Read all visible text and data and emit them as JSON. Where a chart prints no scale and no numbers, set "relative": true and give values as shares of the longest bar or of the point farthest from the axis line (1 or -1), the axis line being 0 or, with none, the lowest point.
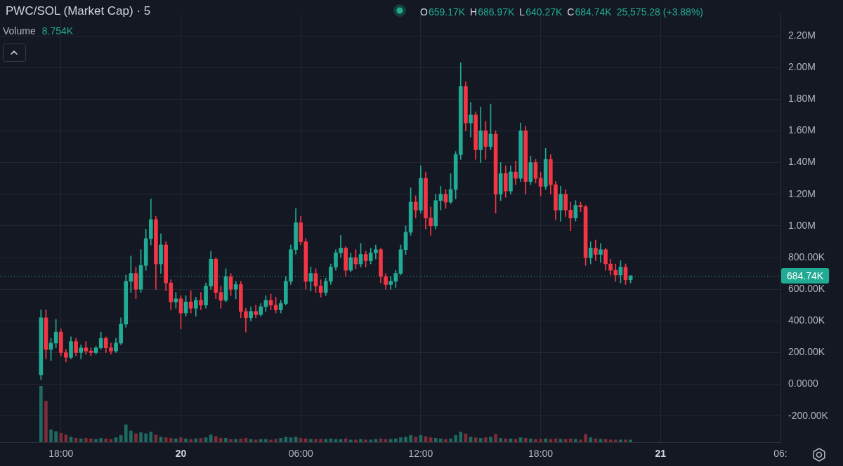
{
  "chart_data": [
    {
      "type": "candlestick",
      "title": "PWC/SOL (Market Cap) · 5",
      "annotations": [
        "O",
        "659.17K",
        "H",
        "686.97K",
        "L",
        "640.27K",
        "C",
        "684.74K",
        "25,575.28 (+3.88%)",
        "Volume",
        "8.754K"
      ],
      "x": [
        "--03-19T17:00",
        "--03-19T17:15",
        "--03-19T17:30",
        "--03-19T17:45",
        "--03-19T18:00",
        "--03-19T18:15",
        "--03-19T18:30",
        "--03-19T18:45",
        "--03-19T19:00",
        "--03-19T19:15",
        "--03-19T19:30",
        "--03-19T19:45",
        "--03-19T20:00",
        "--03-19T20:15",
        "--03-19T20:30",
        "--03-19T20:45",
        "--03-19T21:00",
        "--03-19T21:15",
        "--03-19T21:30",
        "--03-19T21:45",
        "--03-19T22:00",
        "--03-19T22:15",
        "--03-19T22:30",
        "--03-19T22:45",
        "--03-19T23:00",
        "--03-19T23:15",
        "--03-19T23:30",
        "--03-19T23:45",
        "--03-20T00:00",
        "--03-20T00:15",
        "--03-20T00:30",
        "--03-20T00:45",
        "--03-20T01:00",
        "--03-20T01:15",
        "--03-20T01:30",
        "--03-20T01:45",
        "--03-20T02:00",
        "--03-20T02:15",
        "--03-20T02:30",
        "--03-20T02:45",
        "--03-20T03:00",
        "--03-20T03:15",
        "--03-20T03:30",
        "--03-20T03:45",
        "--03-20T04:00",
        "--03-20T04:15",
        "--03-20T04:30",
        "--03-20T04:45",
        "--03-20T05:00",
        "--03-20T05:15",
        "--03-20T05:30",
        "--03-20T05:45",
        "--03-20T06:00",
        "--03-20T06:15",
        "--03-20T06:30",
        "--03-20T06:45",
        "--03-20T07:00",
        "--03-20T07:15",
        "--03-20T07:30",
        "--03-20T07:45",
        "--03-20T08:00",
        "--03-20T08:15",
        "--03-20T08:30",
        "--03-20T08:45",
        "--03-20T09:00",
        "--03-20T09:15",
        "--03-20T09:30",
        "--03-20T09:45",
        "--03-20T10:00",
        "--03-20T10:15",
        "--03-20T10:30",
        "--03-20T10:45",
        "--03-20T11:00",
        "--03-20T11:15",
        "--03-20T11:30",
        "--03-20T11:45",
        "--03-20T12:00",
        "--03-20T12:15",
        "--03-20T12:30",
        "--03-20T12:45",
        "--03-20T13:00",
        "--03-20T13:15",
        "--03-20T13:30",
        "--03-20T13:45",
        "--03-20T14:00",
        "--03-20T14:15",
        "--03-20T14:30",
        "--03-20T14:45",
        "--03-20T15:00",
        "--03-20T15:15",
        "--03-20T15:30",
        "--03-20T15:45",
        "--03-20T16:00",
        "--03-20T16:15",
        "--03-20T16:30",
        "--03-20T16:45",
        "--03-20T17:00",
        "--03-20T17:15",
        "--03-20T17:30",
        "--03-20T17:45",
        "--03-20T18:00",
        "--03-20T18:15",
        "--03-20T18:30",
        "--03-20T18:45",
        "--03-20T19:00",
        "--03-20T19:15",
        "--03-20T19:30",
        "--03-20T19:45",
        "--03-20T20:00",
        "--03-20T20:15",
        "--03-20T20:30",
        "--03-20T20:45",
        "--03-20T21:00",
        "--03-20T21:15",
        "--03-20T21:30",
        "--03-20T21:45",
        "--03-20T22:00",
        "--03-20T22:15",
        "--03-20T22:30"
      ],
      "ohlc": [
        [
          60000,
          470000,
          30000,
          420000
        ],
        [
          420000,
          470000,
          160000,
          220000
        ],
        [
          220000,
          290000,
          150000,
          260000
        ],
        [
          260000,
          410000,
          230000,
          330000
        ],
        [
          330000,
          350000,
          180000,
          200000
        ],
        [
          200000,
          220000,
          140000,
          170000
        ],
        [
          170000,
          300000,
          160000,
          270000
        ],
        [
          270000,
          290000,
          180000,
          200000
        ],
        [
          200000,
          250000,
          160000,
          230000
        ],
        [
          230000,
          270000,
          190000,
          210000
        ],
        [
          210000,
          230000,
          180000,
          200000
        ],
        [
          200000,
          240000,
          190000,
          230000
        ],
        [
          230000,
          330000,
          220000,
          290000
        ],
        [
          290000,
          300000,
          200000,
          230000
        ],
        [
          230000,
          260000,
          190000,
          210000
        ],
        [
          210000,
          290000,
          200000,
          260000
        ],
        [
          260000,
          420000,
          250000,
          380000
        ],
        [
          380000,
          690000,
          360000,
          650000
        ],
        [
          650000,
          810000,
          580000,
          700000
        ],
        [
          700000,
          740000,
          540000,
          600000
        ],
        [
          600000,
          850000,
          580000,
          750000
        ],
        [
          750000,
          980000,
          720000,
          920000
        ],
        [
          920000,
          1170000,
          880000,
          1040000
        ],
        [
          1040000,
          1060000,
          600000,
          760000
        ],
        [
          760000,
          950000,
          700000,
          880000
        ],
        [
          880000,
          900000,
          590000,
          640000
        ],
        [
          640000,
          660000,
          470000,
          520000
        ],
        [
          520000,
          580000,
          480000,
          540000
        ],
        [
          540000,
          560000,
          350000,
          450000
        ],
        [
          450000,
          560000,
          430000,
          520000
        ],
        [
          520000,
          590000,
          450000,
          480000
        ],
        [
          480000,
          550000,
          430000,
          530000
        ],
        [
          530000,
          580000,
          470000,
          500000
        ],
        [
          500000,
          640000,
          480000,
          620000
        ],
        [
          620000,
          840000,
          600000,
          790000
        ],
        [
          790000,
          800000,
          540000,
          580000
        ],
        [
          580000,
          620000,
          480000,
          530000
        ],
        [
          530000,
          730000,
          520000,
          680000
        ],
        [
          680000,
          700000,
          560000,
          600000
        ],
        [
          600000,
          650000,
          540000,
          630000
        ],
        [
          630000,
          650000,
          420000,
          460000
        ],
        [
          460000,
          480000,
          330000,
          420000
        ],
        [
          420000,
          490000,
          400000,
          460000
        ],
        [
          460000,
          500000,
          420000,
          440000
        ],
        [
          440000,
          510000,
          430000,
          490000
        ],
        [
          490000,
          560000,
          460000,
          530000
        ],
        [
          530000,
          570000,
          470000,
          500000
        ],
        [
          500000,
          550000,
          450000,
          470000
        ],
        [
          470000,
          530000,
          450000,
          510000
        ],
        [
          510000,
          680000,
          500000,
          650000
        ],
        [
          650000,
          880000,
          630000,
          850000
        ],
        [
          850000,
          1110000,
          820000,
          1020000
        ],
        [
          1020000,
          1060000,
          880000,
          900000
        ],
        [
          900000,
          920000,
          600000,
          650000
        ],
        [
          650000,
          740000,
          590000,
          700000
        ],
        [
          700000,
          730000,
          580000,
          620000
        ],
        [
          620000,
          660000,
          550000,
          580000
        ],
        [
          580000,
          670000,
          560000,
          650000
        ],
        [
          650000,
          760000,
          630000,
          740000
        ],
        [
          740000,
          850000,
          720000,
          830000
        ],
        [
          830000,
          940000,
          800000,
          860000
        ],
        [
          860000,
          870000,
          680000,
          720000
        ],
        [
          720000,
          830000,
          710000,
          800000
        ],
        [
          800000,
          850000,
          730000,
          760000
        ],
        [
          760000,
          890000,
          740000,
          820000
        ],
        [
          820000,
          840000,
          740000,
          780000
        ],
        [
          780000,
          860000,
          760000,
          830000
        ],
        [
          830000,
          880000,
          790000,
          850000
        ],
        [
          850000,
          860000,
          640000,
          680000
        ],
        [
          680000,
          700000,
          600000,
          630000
        ],
        [
          630000,
          680000,
          600000,
          650000
        ],
        [
          650000,
          720000,
          610000,
          700000
        ],
        [
          700000,
          880000,
          690000,
          850000
        ],
        [
          850000,
          1000000,
          820000,
          960000
        ],
        [
          960000,
          1240000,
          940000,
          1150000
        ],
        [
          1150000,
          1190000,
          1050000,
          1100000
        ],
        [
          1100000,
          1380000,
          1080000,
          1300000
        ],
        [
          1300000,
          1340000,
          980000,
          1050000
        ],
        [
          1050000,
          1120000,
          940000,
          1000000
        ],
        [
          1000000,
          1200000,
          980000,
          1160000
        ],
        [
          1160000,
          1250000,
          1100000,
          1200000
        ],
        [
          1200000,
          1230000,
          1110000,
          1150000
        ],
        [
          1150000,
          1330000,
          1140000,
          1230000
        ],
        [
          1230000,
          1470000,
          1170000,
          1450000
        ],
        [
          1450000,
          2030000,
          1420000,
          1880000
        ],
        [
          1880000,
          1910000,
          1600000,
          1650000
        ],
        [
          1650000,
          1780000,
          1560000,
          1700000
        ],
        [
          1700000,
          1720000,
          1420000,
          1480000
        ],
        [
          1480000,
          1750000,
          1400000,
          1600000
        ],
        [
          1600000,
          1660000,
          1420000,
          1500000
        ],
        [
          1500000,
          1770000,
          1480000,
          1580000
        ],
        [
          1580000,
          1600000,
          1080000,
          1200000
        ],
        [
          1200000,
          1400000,
          1160000,
          1330000
        ],
        [
          1330000,
          1380000,
          1180000,
          1220000
        ],
        [
          1220000,
          1380000,
          1200000,
          1340000
        ],
        [
          1340000,
          1410000,
          1260000,
          1300000
        ],
        [
          1300000,
          1650000,
          1280000,
          1600000
        ],
        [
          1600000,
          1630000,
          1200000,
          1280000
        ],
        [
          1280000,
          1440000,
          1260000,
          1400000
        ],
        [
          1400000,
          1420000,
          1270000,
          1300000
        ],
        [
          1300000,
          1340000,
          1190000,
          1250000
        ],
        [
          1250000,
          1490000,
          1230000,
          1420000
        ],
        [
          1420000,
          1450000,
          1200000,
          1260000
        ],
        [
          1260000,
          1280000,
          1040000,
          1100000
        ],
        [
          1100000,
          1250000,
          1030000,
          1200000
        ],
        [
          1200000,
          1230000,
          1060000,
          1100000
        ],
        [
          1100000,
          1150000,
          970000,
          1050000
        ],
        [
          1050000,
          1160000,
          1030000,
          1130000
        ],
        [
          1130000,
          1150000,
          1090000,
          1120000
        ],
        [
          1120000,
          1130000,
          750000,
          800000
        ],
        [
          800000,
          900000,
          760000,
          860000
        ],
        [
          860000,
          910000,
          780000,
          820000
        ],
        [
          820000,
          890000,
          770000,
          850000
        ],
        [
          850000,
          860000,
          720000,
          760000
        ],
        [
          760000,
          790000,
          690000,
          720000
        ],
        [
          720000,
          760000,
          650000,
          690000
        ],
        [
          690000,
          780000,
          640000,
          740000
        ],
        [
          740000,
          760000,
          630000,
          660000
        ],
        [
          659170,
          686970,
          640270,
          684740
        ]
      ],
      "colors": [
        "#22ab94",
        "#f23645",
        "#22ab94",
        "#22ab94",
        "#f23645",
        "#f23645",
        "#22ab94",
        "#f23645",
        "#22ab94",
        "#f23645",
        "#f23645",
        "#22ab94",
        "#22ab94",
        "#f23645",
        "#f23645",
        "#22ab94",
        "#22ab94",
        "#22ab94",
        "#22ab94",
        "#f23645",
        "#22ab94",
        "#22ab94",
        "#22ab94",
        "#f23645",
        "#22ab94",
        "#f23645",
        "#f23645",
        "#22ab94",
        "#f23645",
        "#22ab94",
        "#f23645",
        "#22ab94",
        "#f23645",
        "#22ab94",
        "#22ab94",
        "#f23645",
        "#f23645",
        "#22ab94",
        "#f23645",
        "#22ab94",
        "#f23645",
        "#f23645",
        "#22ab94",
        "#f23645",
        "#22ab94",
        "#22ab94",
        "#f23645",
        "#f23645",
        "#22ab94",
        "#22ab94",
        "#22ab94",
        "#22ab94",
        "#f23645",
        "#f23645",
        "#22ab94",
        "#f23645",
        "#f23645",
        "#22ab94",
        "#22ab94",
        "#22ab94",
        "#22ab94",
        "#f23645",
        "#22ab94",
        "#f23645",
        "#22ab94",
        "#f23645",
        "#22ab94",
        "#22ab94",
        "#f23645",
        "#f23645",
        "#22ab94",
        "#22ab94",
        "#22ab94",
        "#22ab94",
        "#22ab94",
        "#f23645",
        "#22ab94",
        "#f23645",
        "#f23645",
        "#22ab94",
        "#22ab94",
        "#f23645",
        "#22ab94",
        "#22ab94",
        "#22ab94",
        "#f23645",
        "#22ab94",
        "#f23645",
        "#22ab94",
        "#f23645",
        "#22ab94",
        "#f23645",
        "#22ab94",
        "#f23645",
        "#22ab94",
        "#f23645",
        "#22ab94",
        "#f23645",
        "#22ab94",
        "#f23645",
        "#f23645",
        "#22ab94",
        "#f23645",
        "#f23645",
        "#22ab94",
        "#f23645",
        "#f23645",
        "#22ab94",
        "#f23645",
        "#f23645",
        "#22ab94",
        "#f23645",
        "#22ab94",
        "#f23645",
        "#f23645",
        "#f23645",
        "#22ab94",
        "#f23645",
        "#22ab94"
      ],
      "xlim": [
        "--03-19T14:57",
        "--03-21T06:00"
      ],
      "xticks": [
        {
          "value": "--03-19T18:00",
          "label": "18:00"
        },
        {
          "value": "--03-20T00:00",
          "label": "20"
        },
        {
          "value": "--03-20T06:00",
          "label": "06:00"
        },
        {
          "value": "--03-20T12:00",
          "label": "12:00"
        },
        {
          "value": "--03-20T18:00",
          "label": "18:00"
        },
        {
          "value": "--03-21T00:00",
          "label": "21"
        },
        {
          "value": "--03-21T06:00",
          "label": "06:"
        }
      ],
      "ylim": [
        -365000,
        2340000
      ],
      "yticks": [
        {
          "value": -200000,
          "label": "-200.00K"
        },
        {
          "value": 0,
          "label": "0.0000"
        },
        {
          "value": 200000,
          "label": "200.00K"
        },
        {
          "value": 400000,
          "label": "400.00K"
        },
        {
          "value": 600000,
          "label": "600.00K"
        },
        {
          "value": 800000,
          "label": "800.00K"
        },
        {
          "value": 1000000,
          "label": "1.00M"
        },
        {
          "value": 1200000,
          "label": "1.20M"
        },
        {
          "value": 1400000,
          "label": "1.40M"
        },
        {
          "value": 1600000,
          "label": "1.60M"
        },
        {
          "value": 1800000,
          "label": "1.80M"
        },
        {
          "value": 2000000,
          "label": "2.00M"
        },
        {
          "value": 2200000,
          "label": "2.20M"
        }
      ],
      "grid": true,
      "ref_lines": [
        {
          "axis": "y",
          "value": 684740,
          "label": "684.74K",
          "color": "#22ab94",
          "line_style": "dotted"
        }
      ]
    },
    {
      "type": "bar",
      "relative": true,
      "x": [
        "--03-19T17:00",
        "--03-19T17:15",
        "--03-19T17:30",
        "--03-19T17:45",
        "--03-19T18:00",
        "--03-19T18:15",
        "--03-19T18:30",
        "--03-19T18:45",
        "--03-19T19:00",
        "--03-19T19:15",
        "--03-19T19:30",
        "--03-19T19:45",
        "--03-19T20:00",
        "--03-19T20:15",
        "--03-19T20:30",
        "--03-19T20:45",
        "--03-19T21:00",
        "--03-19T21:15",
        "--03-19T21:30",
        "--03-19T21:45",
        "--03-19T22:00",
        "--03-19T22:15",
        "--03-19T22:30",
        "--03-19T22:45",
        "--03-19T23:00",
        "--03-19T23:15",
        "--03-19T23:30",
        "--03-19T23:45",
        "--03-20T00:00",
        "--03-20T00:15",
        "--03-20T00:30",
        "--03-20T00:45",
        "--03-20T01:00",
        "--03-20T01:15",
        "--03-20T01:30",
        "--03-20T01:45",
        "--03-20T02:00",
        "--03-20T02:15",
        "--03-20T02:30",
        "--03-20T02:45",
        "--03-20T03:00",
        "--03-20T03:15",
        "--03-20T03:30",
        "--03-20T03:45",
        "--03-20T04:00",
        "--03-20T04:15",
        "--03-20T04:30",
        "--03-20T04:45",
        "--03-20T05:00",
        "--03-20T05:15",
        "--03-20T05:30",
        "--03-20T05:45",
        "--03-20T06:00",
        "--03-20T06:15",
        "--03-20T06:30",
        "--03-20T06:45",
        "--03-20T07:00",
        "--03-20T07:15",
        "--03-20T07:30",
        "--03-20T07:45",
        "--03-20T08:00",
        "--03-20T08:15",
        "--03-20T08:30",
        "--03-20T08:45",
        "--03-20T09:00",
        "--03-20T09:15",
        "--03-20T09:30",
        "--03-20T09:45",
        "--03-20T10:00",
        "--03-20T10:15",
        "--03-20T10:30",
        "--03-20T10:45",
        "--03-20T11:00",
        "--03-20T11:15",
        "--03-20T11:30",
        "--03-20T11:45",
        "--03-20T12:00",
        "--03-20T12:15",
        "--03-20T12:30",
        "--03-20T12:45",
        "--03-20T13:00",
        "--03-20T13:15",
        "--03-20T13:30",
        "--03-20T13:45",
        "--03-20T14:00",
        "--03-20T14:15",
        "--03-20T14:30",
        "--03-20T14:45",
        "--03-20T15:00",
        "--03-20T15:15",
        "--03-20T15:30",
        "--03-20T15:45",
        "--03-20T16:00",
        "--03-20T16:15",
        "--03-20T16:30",
        "--03-20T16:45",
        "--03-20T17:00",
        "--03-20T17:15",
        "--03-20T17:30",
        "--03-20T17:45",
        "--03-20T18:00",
        "--03-20T18:15",
        "--03-20T18:30",
        "--03-20T18:45",
        "--03-20T19:00",
        "--03-20T19:15",
        "--03-20T19:30",
        "--03-20T19:45",
        "--03-20T20:00",
        "--03-20T20:15",
        "--03-20T20:30",
        "--03-20T20:45",
        "--03-20T21:00",
        "--03-20T21:15",
        "--03-20T21:30",
        "--03-20T21:45",
        "--03-20T22:00",
        "--03-20T22:15",
        "--03-20T22:30"
      ],
      "values": [
        1,
        0.73,
        0.22,
        0.19,
        0.16,
        0.13,
        0.09,
        0.07,
        0.06,
        0.07,
        0.06,
        0.05,
        0.07,
        0.06,
        0.05,
        0.08,
        0.12,
        0.31,
        0.2,
        0.15,
        0.17,
        0.15,
        0.18,
        0.13,
        0.09,
        0.08,
        0.07,
        0.06,
        0.08,
        0.06,
        0.05,
        0.06,
        0.07,
        0.08,
        0.13,
        0.1,
        0.07,
        0.07,
        0.05,
        0.05,
        0.06,
        0.07,
        0.05,
        0.04,
        0.05,
        0.05,
        0.04,
        0.05,
        0.07,
        0.09,
        0.08,
        0.09,
        0.07,
        0.06,
        0.05,
        0.05,
        0.05,
        0.05,
        0.06,
        0.05,
        0.05,
        0.06,
        0.04,
        0.04,
        0.05,
        0.04,
        0.04,
        0.05,
        0.06,
        0.05,
        0.05,
        0.06,
        0.08,
        0.09,
        0.12,
        0.09,
        0.12,
        0.1,
        0.08,
        0.07,
        0.06,
        0.05,
        0.06,
        0.12,
        0.18,
        0.15,
        0.09,
        0.08,
        0.07,
        0.08,
        0.09,
        0.14,
        0.07,
        0.06,
        0.06,
        0.05,
        0.08,
        0.07,
        0.06,
        0.05,
        0.05,
        0.06,
        0.05,
        0.06,
        0.05,
        0.05,
        0.06,
        0.05,
        0.04,
        0.14,
        0.08,
        0.06,
        0.05,
        0.05,
        0.04,
        0.04,
        0.04,
        0.04,
        0.04
      ],
      "colors": [
        "#1e6a61",
        "#7d2d38",
        "#1e6a61",
        "#1e6a61",
        "#7d2d38",
        "#7d2d38",
        "#1e6a61",
        "#7d2d38",
        "#1e6a61",
        "#7d2d38",
        "#7d2d38",
        "#1e6a61",
        "#1e6a61",
        "#7d2d38",
        "#7d2d38",
        "#1e6a61",
        "#1e6a61",
        "#1e6a61",
        "#1e6a61",
        "#7d2d38",
        "#1e6a61",
        "#1e6a61",
        "#1e6a61",
        "#7d2d38",
        "#1e6a61",
        "#7d2d38",
        "#7d2d38",
        "#1e6a61",
        "#7d2d38",
        "#1e6a61",
        "#7d2d38",
        "#1e6a61",
        "#7d2d38",
        "#1e6a61",
        "#1e6a61",
        "#7d2d38",
        "#7d2d38",
        "#1e6a61",
        "#7d2d38",
        "#1e6a61",
        "#7d2d38",
        "#7d2d38",
        "#1e6a61",
        "#7d2d38",
        "#1e6a61",
        "#1e6a61",
        "#7d2d38",
        "#7d2d38",
        "#1e6a61",
        "#1e6a61",
        "#1e6a61",
        "#1e6a61",
        "#7d2d38",
        "#7d2d38",
        "#1e6a61",
        "#7d2d38",
        "#7d2d38",
        "#1e6a61",
        "#1e6a61",
        "#1e6a61",
        "#1e6a61",
        "#7d2d38",
        "#1e6a61",
        "#7d2d38",
        "#1e6a61",
        "#7d2d38",
        "#1e6a61",
        "#1e6a61",
        "#7d2d38",
        "#7d2d38",
        "#1e6a61",
        "#1e6a61",
        "#1e6a61",
        "#1e6a61",
        "#1e6a61",
        "#7d2d38",
        "#1e6a61",
        "#7d2d38",
        "#7d2d38",
        "#1e6a61",
        "#1e6a61",
        "#7d2d38",
        "#1e6a61",
        "#1e6a61",
        "#1e6a61",
        "#7d2d38",
        "#1e6a61",
        "#7d2d38",
        "#1e6a61",
        "#7d2d38",
        "#1e6a61",
        "#7d2d38",
        "#1e6a61",
        "#7d2d38",
        "#1e6a61",
        "#7d2d38",
        "#1e6a61",
        "#7d2d38",
        "#1e6a61",
        "#7d2d38",
        "#7d2d38",
        "#1e6a61",
        "#7d2d38",
        "#7d2d38",
        "#1e6a61",
        "#7d2d38",
        "#7d2d38",
        "#1e6a61",
        "#7d2d38",
        "#7d2d38",
        "#1e6a61",
        "#7d2d38",
        "#1e6a61",
        "#7d2d38",
        "#7d2d38",
        "#7d2d38",
        "#1e6a61",
        "#7d2d38",
        "#1e6a61"
      ],
      "xlim": [
        "--03-19T14:57",
        "--03-21T06:00"
      ],
      "tick_labels": false
    }
  ]
}
